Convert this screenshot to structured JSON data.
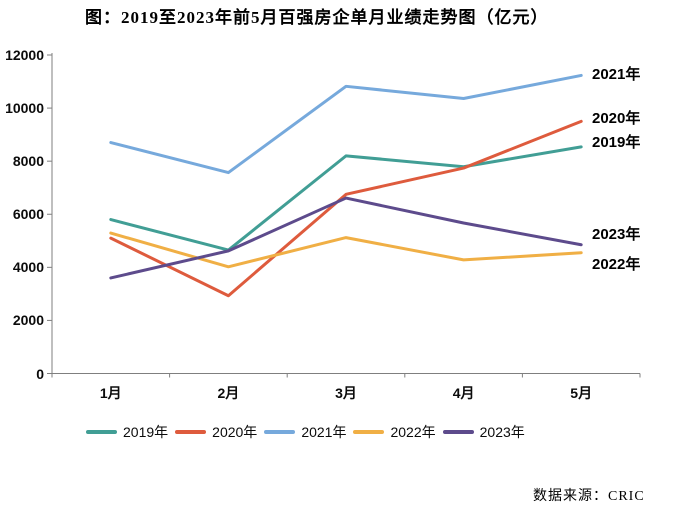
{
  "page": {
    "title": "图：2019至2023年前5月百强房企单月业绩走势图（亿元）",
    "source": "数据来源：CRIC"
  },
  "chart_data": {
    "type": "line",
    "title": "图：2019至2023年前5月百强房企单月业绩走势图（亿元）",
    "categories": [
      "1月",
      "2月",
      "3月",
      "4月",
      "5月"
    ],
    "series": [
      {
        "name": "2019年",
        "color": "#419E95",
        "values": [
          5800,
          4650,
          8200,
          7790,
          8540
        ],
        "end_label_y": 144
      },
      {
        "name": "2020年",
        "color": "#DE5B3D",
        "values": [
          5100,
          2930,
          6750,
          7740,
          9500
        ],
        "end_label_y": 120
      },
      {
        "name": "2021年",
        "color": "#76A9DC",
        "values": [
          8700,
          7570,
          10820,
          10360,
          11230
        ],
        "end_label_y": 76
      },
      {
        "name": "2022年",
        "color": "#F0AF45",
        "values": [
          5290,
          4020,
          5120,
          4280,
          4550
        ],
        "end_label_y": 266
      },
      {
        "name": "2023年",
        "color": "#5D4B8C",
        "values": [
          3600,
          4620,
          6610,
          5670,
          4850
        ],
        "end_label_y": 236
      }
    ],
    "ylim": [
      0,
      12000
    ],
    "y_ticks": [
      0,
      2000,
      4000,
      6000,
      8000,
      10000,
      12000
    ],
    "grid": false,
    "legend": [
      "2019年",
      "2020年",
      "2021年",
      "2022年",
      "2023年"
    ],
    "legend_position": "bottom",
    "axis_color": "#7F7F7F"
  }
}
